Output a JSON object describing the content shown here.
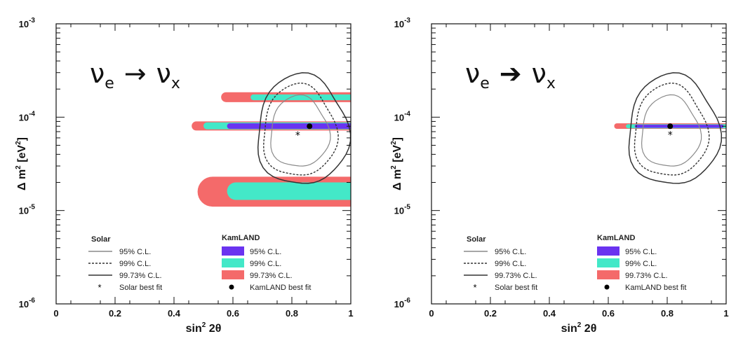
{
  "chart_data": [
    {
      "type": "contour",
      "title": "",
      "reaction": {
        "from": "ν",
        "from_sub": "e",
        "arrow": "→",
        "to": "ν",
        "to_sub": "x"
      },
      "xlabel": "sin",
      "xlabel_sup": "2",
      "xlabel_tail": " 2θ",
      "ylabel": "Δ m",
      "ylabel_sup": "2",
      "ylabel_unit": " [eV",
      "ylabel_unit_sup": "2",
      "ylabel_close": "]",
      "xlim": [
        0,
        1
      ],
      "ylim": [
        1e-06,
        0.001
      ],
      "yscale": "log",
      "x_ticks": [
        "0",
        "0.2",
        "0.4",
        "0.6",
        "0.8",
        "1"
      ],
      "y_ticks": [
        {
          "base": "10",
          "exp": "-3"
        },
        {
          "base": "10",
          "exp": "-4"
        },
        {
          "base": "10",
          "exp": "-5"
        },
        {
          "base": "10",
          "exp": "-6"
        }
      ],
      "grid": false,
      "kamland_regions": {
        "cl9973": [
          {
            "x": [
              0.46,
              1.0
            ],
            "y": [
              7.2e-05,
              9e-05
            ]
          },
          {
            "x": [
              0.56,
              1.0
            ],
            "y": [
              0.000145,
              0.000185
            ]
          },
          {
            "x": [
              0.48,
              1.0
            ],
            "y": [
              1.1e-05,
              2.3e-05
            ]
          }
        ],
        "cl99": [
          {
            "x": [
              0.5,
              1.0
            ],
            "y": [
              7.4e-05,
              8.8e-05
            ]
          },
          {
            "x": [
              0.66,
              0.98
            ],
            "y": [
              0.000152,
              0.000175
            ]
          },
          {
            "x": [
              0.58,
              1.0
            ],
            "y": [
              1.3e-05,
              2e-05
            ]
          }
        ],
        "cl95": [
          {
            "x": [
              0.58,
              1.0
            ],
            "y": [
              7.5e-05,
              8.6e-05
            ]
          }
        ]
      },
      "kamland_best_fit": {
        "x": 0.86,
        "y": 8e-05
      },
      "solar_best_fit": {
        "x": 0.82,
        "y": 6.4e-05
      },
      "solar_contours": {
        "cl95": {
          "cx": 0.825,
          "cy": 6.5e-05,
          "rx": 0.1,
          "ryup": 0.41,
          "rydown": 0.35
        },
        "cl99": {
          "cx": 0.825,
          "cy": 6.5e-05,
          "rx": 0.125,
          "ryup": 0.53,
          "rydown": 0.45
        },
        "cl9973": {
          "cx": 0.835,
          "cy": 6.6e-05,
          "rx": 0.155,
          "ryup": 0.63,
          "rydown": 0.55
        }
      },
      "legend": {
        "solar_title": "Solar",
        "solar_entries": [
          "95% C.L.",
          "99% C.L.",
          "99.73% C.L.",
          "Solar best fit"
        ],
        "kamland_title": "KamLAND",
        "kamland_entries": [
          "95% C.L.",
          "99% C.L.",
          "99.73% C.L.",
          "KamLAND best fit"
        ]
      }
    },
    {
      "type": "contour",
      "title": "",
      "reaction": {
        "from": "ν",
        "from_sub": "e",
        "arrow": "➔",
        "to": "ν",
        "to_sub": "x"
      },
      "xlabel": "sin",
      "xlabel_sup": "2",
      "xlabel_tail": " 2θ",
      "ylabel": "Δ m",
      "ylabel_sup": "2",
      "ylabel_unit": " [eV",
      "ylabel_unit_sup": "2",
      "ylabel_close": "]",
      "xlim": [
        0,
        1
      ],
      "ylim": [
        1e-06,
        0.001
      ],
      "yscale": "log",
      "x_ticks": [
        "0",
        "0.2",
        "0.4",
        "0.6",
        "0.8",
        "1"
      ],
      "y_ticks": [
        {
          "base": "10",
          "exp": "-3"
        },
        {
          "base": "10",
          "exp": "-4"
        },
        {
          "base": "10",
          "exp": "-5"
        },
        {
          "base": "10",
          "exp": "-6"
        }
      ],
      "grid": false,
      "kamland_regions": {
        "cl9973": [
          {
            "x": [
              0.62,
              1.0
            ],
            "y": [
              7.5e-05,
              8.6e-05
            ]
          }
        ],
        "cl99": [
          {
            "x": [
              0.66,
              0.95
            ],
            "y": [
              7.6e-05,
              8.4e-05
            ]
          }
        ],
        "cl95": [
          {
            "x": [
              0.69,
              0.92
            ],
            "y": [
              7.7e-05,
              8.3e-05
            ]
          }
        ]
      },
      "kamland_best_fit": {
        "x": 0.81,
        "y": 8e-05
      },
      "solar_best_fit": {
        "x": 0.81,
        "y": 6.5e-05
      },
      "solar_contours": {
        "cl95": {
          "cx": 0.81,
          "cy": 6.5e-05,
          "rx": 0.1,
          "ryup": 0.41,
          "rydown": 0.35
        },
        "cl99": {
          "cx": 0.81,
          "cy": 6.5e-05,
          "rx": 0.125,
          "ryup": 0.53,
          "rydown": 0.45
        },
        "cl9973": {
          "cx": 0.82,
          "cy": 6.6e-05,
          "rx": 0.155,
          "ryup": 0.63,
          "rydown": 0.55
        }
      },
      "legend": {
        "solar_title": "Solar",
        "solar_entries": [
          "95% C.L.",
          "99% C.L.",
          "99.73% C.L.",
          "Solar best fit"
        ],
        "kamland_title": "KamLAND",
        "kamland_entries": [
          "95% C.L.",
          "99% C.L.",
          "99.73% C.L.",
          "KamLAND best fit"
        ]
      }
    }
  ],
  "colors": {
    "cl95": "#6a33f0",
    "cl99": "#43e8c8",
    "cl9973": "#f46a6a",
    "solar_line": "#333333",
    "solar_light": "#8a8a8a",
    "axis": "#111111"
  }
}
